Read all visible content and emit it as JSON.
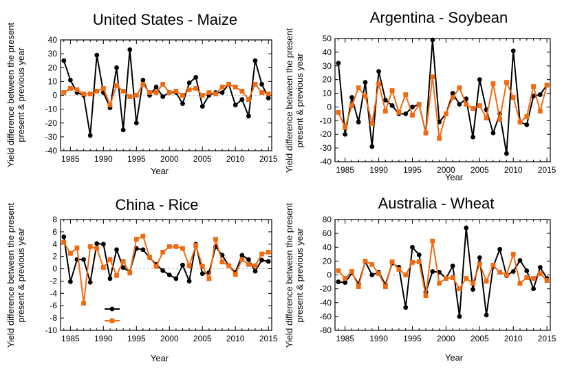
{
  "chart_data": [
    {
      "type": "line",
      "title": "United States - Maize",
      "xlabel": "Year",
      "ylabel": "Yield difference between the present &  previous year",
      "xlim": [
        1983.5,
        2015.5
      ],
      "ylim": [
        -40,
        40
      ],
      "yticks": [
        -40,
        -30,
        -20,
        -10,
        0,
        10,
        20,
        30,
        40
      ],
      "xticks": [
        1985,
        1990,
        1995,
        2000,
        2005,
        2010,
        2015
      ],
      "x": [
        1984,
        1985,
        1986,
        1987,
        1988,
        1989,
        1990,
        1991,
        1992,
        1993,
        1994,
        1995,
        1996,
        1997,
        1998,
        1999,
        2000,
        2001,
        2002,
        2003,
        2004,
        2005,
        2006,
        2007,
        2008,
        2009,
        2010,
        2011,
        2012,
        2013,
        2014,
        2015
      ],
      "series": [
        {
          "values": [
            25,
            11,
            2,
            0,
            -29,
            29,
            2,
            -9,
            20,
            -25,
            33,
            -20,
            11,
            0,
            6,
            -1,
            2,
            2,
            -6,
            9,
            13,
            -8,
            0,
            2,
            2,
            8,
            -7,
            -3,
            -15,
            25,
            8,
            -2
          ],
          "color": "#000000",
          "marker": "circle"
        },
        {
          "values": [
            2,
            5,
            4,
            1,
            1,
            3,
            5,
            -7,
            7,
            3,
            -1,
            0,
            8,
            2,
            2,
            8,
            2,
            3,
            0,
            4,
            5,
            0,
            2,
            1,
            6,
            8,
            6,
            3,
            -3,
            8,
            2,
            1
          ],
          "color": "#f26a10",
          "marker": "square"
        }
      ]
    },
    {
      "type": "line",
      "title": "Argentina - Soybean",
      "xlabel": "Year",
      "ylabel": "Yield difference between the present &  previous year",
      "xlim": [
        1983.5,
        2015.5
      ],
      "ylim": [
        -40,
        50
      ],
      "yticks": [
        -40,
        -30,
        -20,
        -10,
        0,
        10,
        20,
        30,
        40,
        50
      ],
      "xticks": [
        1985,
        1990,
        1995,
        2000,
        2005,
        2010,
        2015
      ],
      "x": [
        1984,
        1985,
        1986,
        1987,
        1988,
        1989,
        1990,
        1991,
        1992,
        1993,
        1994,
        1995,
        1996,
        1997,
        1998,
        1999,
        2000,
        2001,
        2002,
        2003,
        2004,
        2005,
        2006,
        2007,
        2008,
        2009,
        2010,
        2011,
        2012,
        2013,
        2014,
        2015
      ],
      "series": [
        {
          "values": [
            32,
            -20,
            7,
            -11,
            18,
            -29,
            26,
            5,
            1,
            -5,
            -5,
            0,
            2,
            -19,
            49,
            -11,
            -5,
            10,
            2,
            6,
            -22,
            20,
            -2,
            -19,
            -5,
            -34,
            41,
            -11,
            -13,
            8,
            9,
            16
          ],
          "color": "#000000",
          "marker": "circle"
        },
        {
          "values": [
            -4,
            -15,
            1,
            14,
            8,
            -12,
            17,
            -3,
            12,
            -4,
            9,
            -6,
            2,
            -19,
            22,
            -23,
            -5,
            7,
            14,
            2,
            -1,
            1,
            -8,
            17,
            -9,
            18,
            7,
            -11,
            -7,
            15,
            -3,
            16
          ],
          "color": "#f26a10",
          "marker": "square"
        }
      ]
    },
    {
      "type": "line",
      "title": "China - Rice",
      "xlabel": "Year",
      "ylabel": "Yield difference between the present &  previous year",
      "xlim": [
        1983.5,
        2015.5
      ],
      "ylim": [
        -10,
        8
      ],
      "yticks": [
        -10,
        -8,
        -6,
        -4,
        -2,
        0,
        2,
        4,
        6,
        8
      ],
      "xticks": [
        1985,
        1990,
        1995,
        2000,
        2005,
        2010,
        2015
      ],
      "x": [
        1984,
        1985,
        1986,
        1987,
        1988,
        1989,
        1990,
        1991,
        1992,
        1993,
        1994,
        1995,
        1996,
        1997,
        1998,
        1999,
        2000,
        2001,
        2002,
        2003,
        2004,
        2005,
        2006,
        2007,
        2008,
        2009,
        2010,
        2011,
        2012,
        2013,
        2014,
        2015
      ],
      "series": [
        {
          "values": [
            5.2,
            -2.1,
            1.5,
            1.5,
            -2.2,
            4.1,
            4.0,
            -1.6,
            3.1,
            0.2,
            -0.5,
            3.3,
            3.1,
            1.8,
            0.7,
            -0.3,
            -1.0,
            -1.6,
            0.6,
            -2.0,
            4.0,
            -0.8,
            -0.6,
            3.6,
            2.2,
            0.5,
            -0.6,
            2.2,
            1.5,
            -0.4,
            1.4,
            1.2
          ],
          "color": "#000000",
          "marker": "circle"
        },
        {
          "values": [
            4.3,
            2.5,
            3.4,
            -5.6,
            3.6,
            3.3,
            0.2,
            1.5,
            -1.1,
            1.2,
            -0.7,
            4.8,
            5.3,
            1.9,
            0.4,
            2.7,
            3.6,
            3.6,
            3.3,
            0.5,
            3.8,
            0.4,
            -1.6,
            4.8,
            1.1,
            0.5,
            -0.9,
            1.5,
            0.7,
            0.5,
            2.4,
            2.7
          ],
          "color": "#f26a10",
          "marker": "square"
        }
      ],
      "legend": {
        "placement": "lower-left",
        "entries": [
          "",
          ""
        ]
      }
    },
    {
      "type": "line",
      "title": "Australia - Wheat",
      "xlabel": "Year",
      "ylabel": "Yield difference between the present &  previous year",
      "xlim": [
        1983.5,
        2015.5
      ],
      "ylim": [
        -80,
        80
      ],
      "yticks": [
        -80,
        -60,
        -40,
        -20,
        0,
        20,
        40,
        60,
        80
      ],
      "xticks": [
        1985,
        1990,
        1995,
        2000,
        2005,
        2010,
        2015
      ],
      "x": [
        1984,
        1985,
        1986,
        1987,
        1988,
        1989,
        1990,
        1991,
        1992,
        1993,
        1994,
        1995,
        1996,
        1997,
        1998,
        1999,
        2000,
        2001,
        2002,
        2003,
        2004,
        2005,
        2006,
        2007,
        2008,
        2009,
        2010,
        2011,
        2012,
        2013,
        2014,
        2015
      ],
      "series": [
        {
          "values": [
            -10,
            -11,
            3,
            -13,
            19,
            0,
            4,
            -14,
            17,
            11,
            -47,
            40,
            29,
            -25,
            5,
            4,
            -5,
            13,
            -60,
            68,
            -21,
            25,
            -58,
            12,
            37,
            -1,
            5,
            21,
            6,
            -20,
            11,
            -5
          ],
          "color": "#000000",
          "marker": "circle"
        },
        {
          "values": [
            6,
            -5,
            5,
            -17,
            20,
            15,
            2,
            -17,
            19,
            8,
            0,
            18,
            19,
            -30,
            49,
            -12,
            -5,
            -4,
            -20,
            -5,
            -12,
            16,
            -9,
            14,
            4,
            0,
            30,
            -12,
            -4,
            -5,
            2,
            -8
          ],
          "color": "#f26a10",
          "marker": "square"
        }
      ]
    }
  ]
}
